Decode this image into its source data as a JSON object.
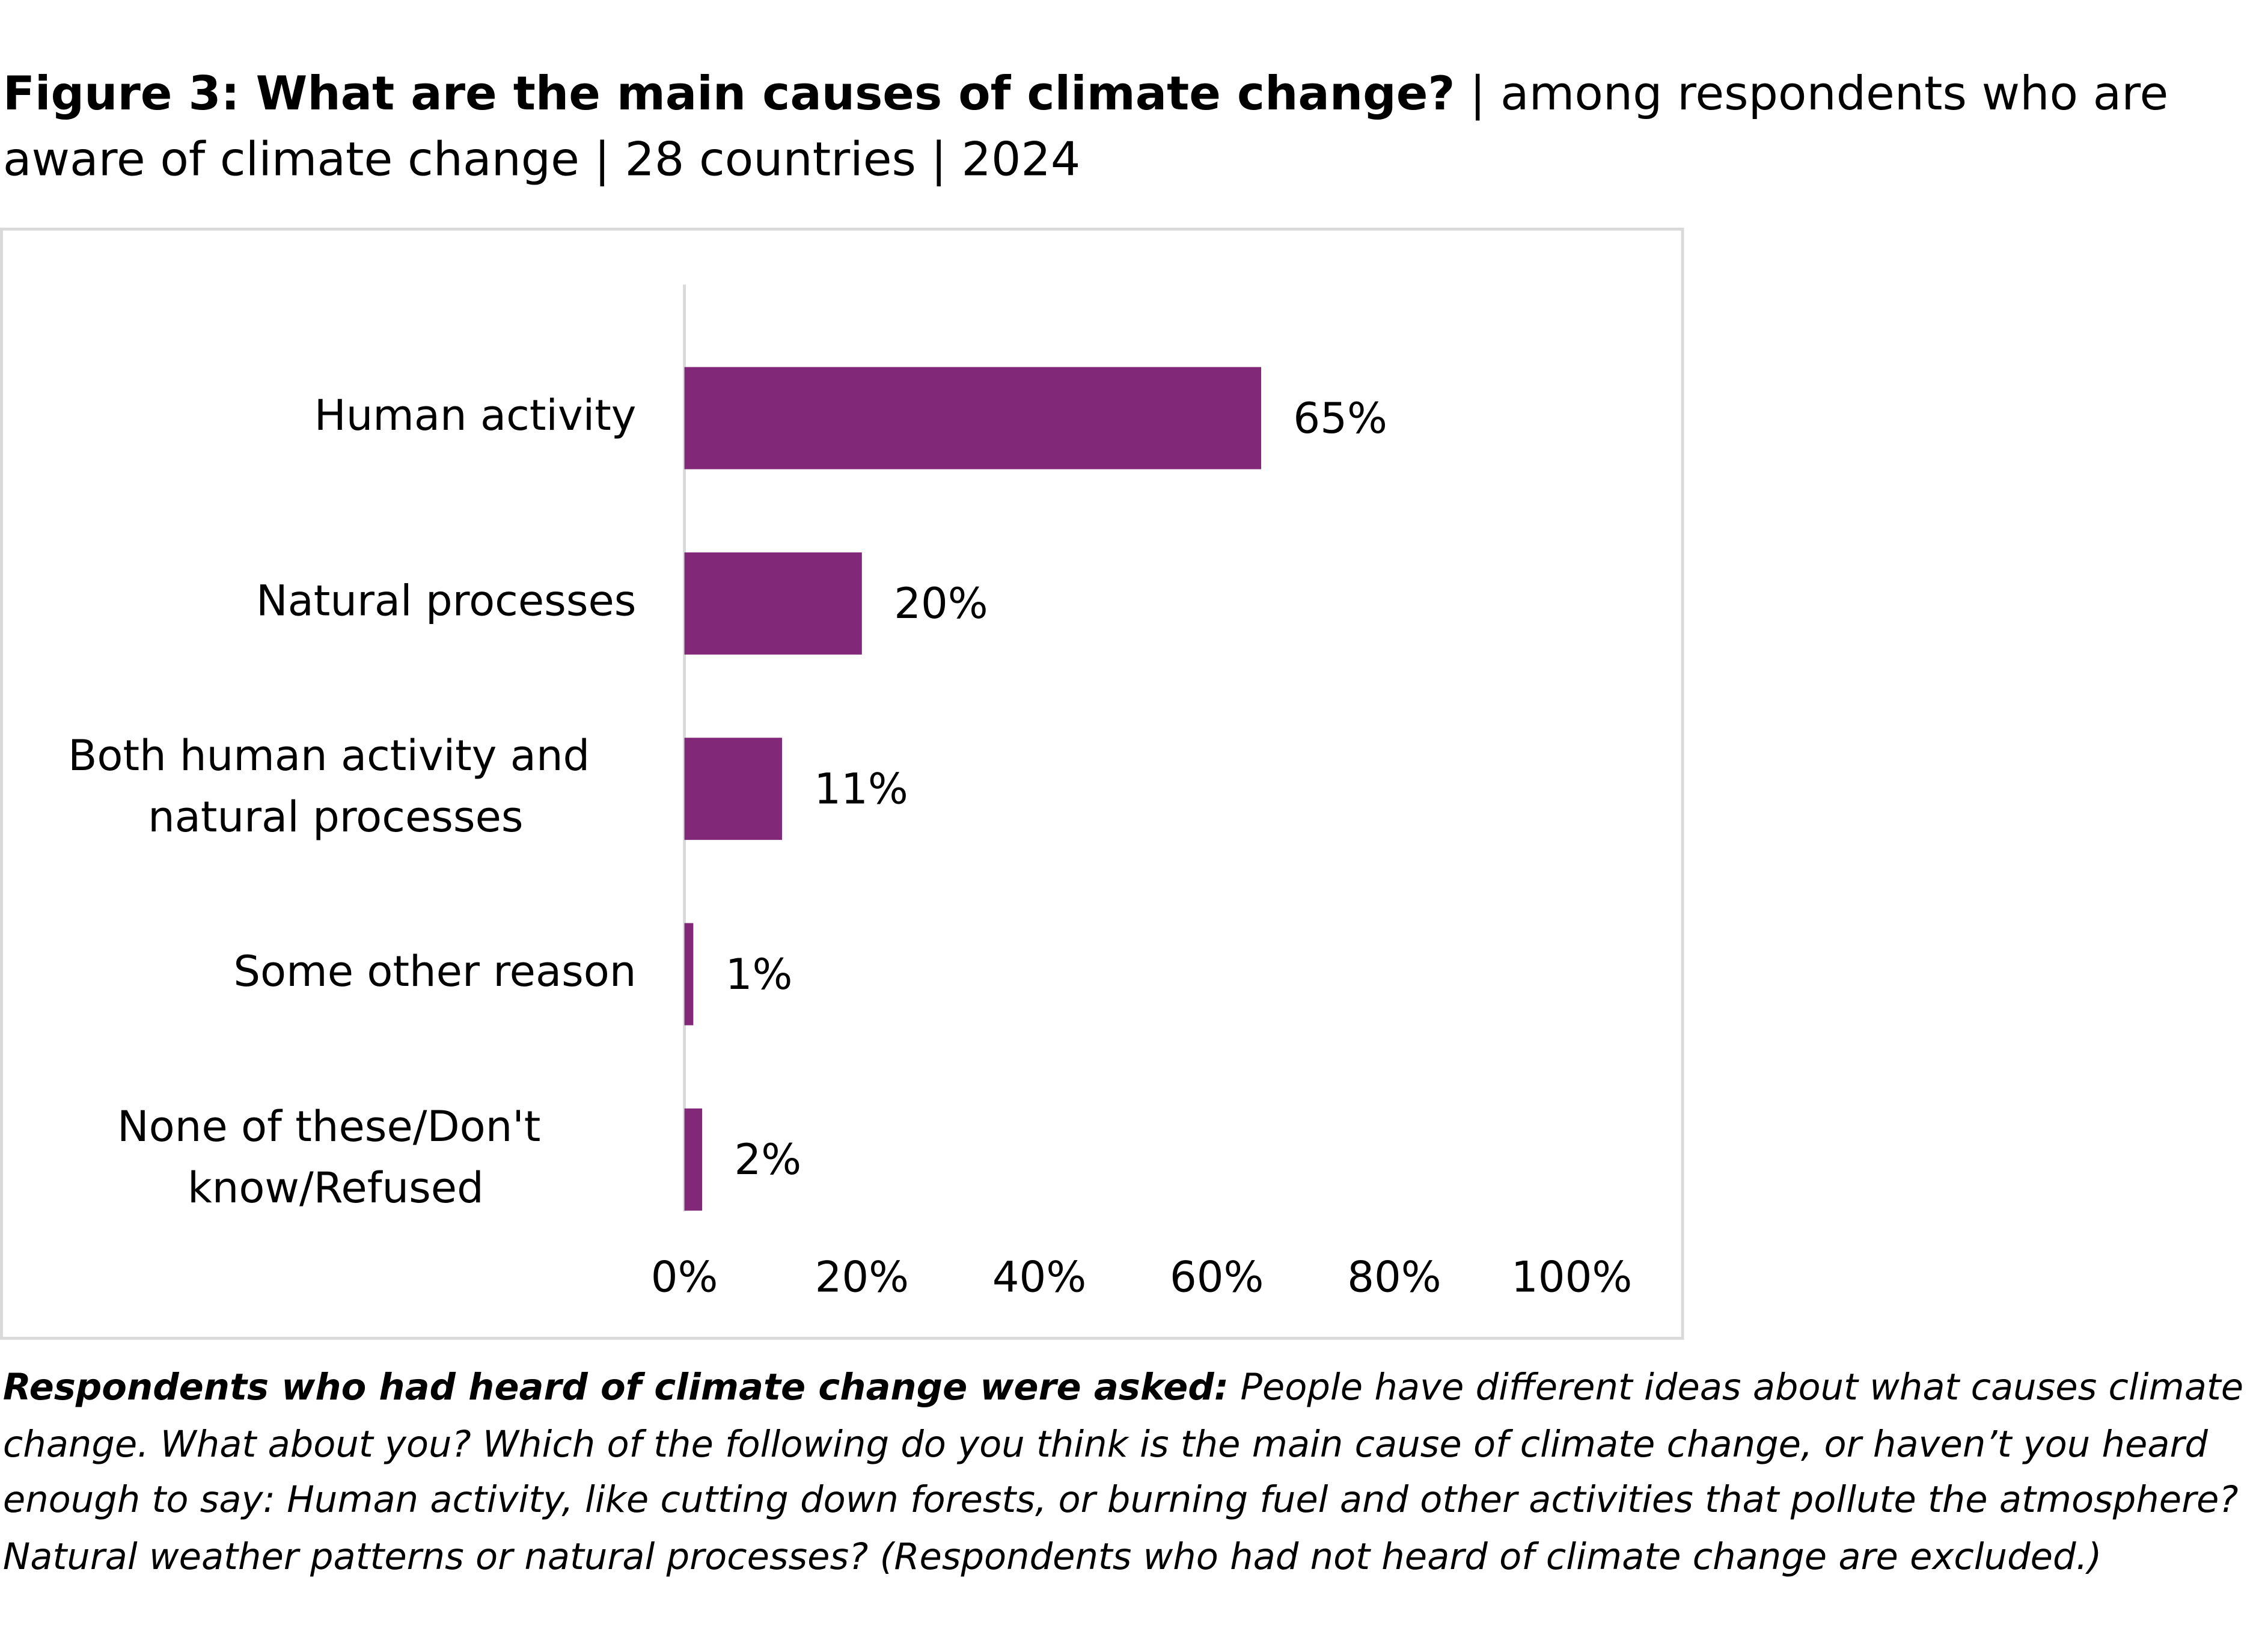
{
  "chart_data": {
    "type": "bar",
    "orientation": "horizontal",
    "title": "Figure 3: What are the main causes of climate change?",
    "subtitle": "| among respondents who are aware of climate change | 28 countries | 2024",
    "categories": [
      "Human activity",
      "Natural processes",
      "Both human activity and natural processes",
      "Some other reason",
      "None of these/Don't know/Refused"
    ],
    "values": [
      65,
      20,
      11,
      1,
      2
    ],
    "value_labels": [
      "65%",
      "20%",
      "11%",
      "1%",
      "2%"
    ],
    "color": "#812878",
    "xlim": [
      0,
      100
    ],
    "xticks": [
      {
        "value": 0,
        "label": "0%"
      },
      {
        "value": 20,
        "label": "20%"
      },
      {
        "value": 40,
        "label": "40%"
      },
      {
        "value": 60,
        "label": "60%"
      },
      {
        "value": 80,
        "label": "80%"
      },
      {
        "value": 100,
        "label": "100%"
      }
    ],
    "grid": false,
    "note_lead": "Respondents who had heard of climate change were asked:",
    "note": "People have different ideas about what causes climate change. What about you? Which of the following do you think is the main cause of climate change, or haven’t you heard enough to say: Human activity, like cutting down forests, or burning fuel and other activities that pollute the atmosphere? Natural weather patterns or natural processes? (Respondents who had not heard of climate change are excluded.)"
  }
}
